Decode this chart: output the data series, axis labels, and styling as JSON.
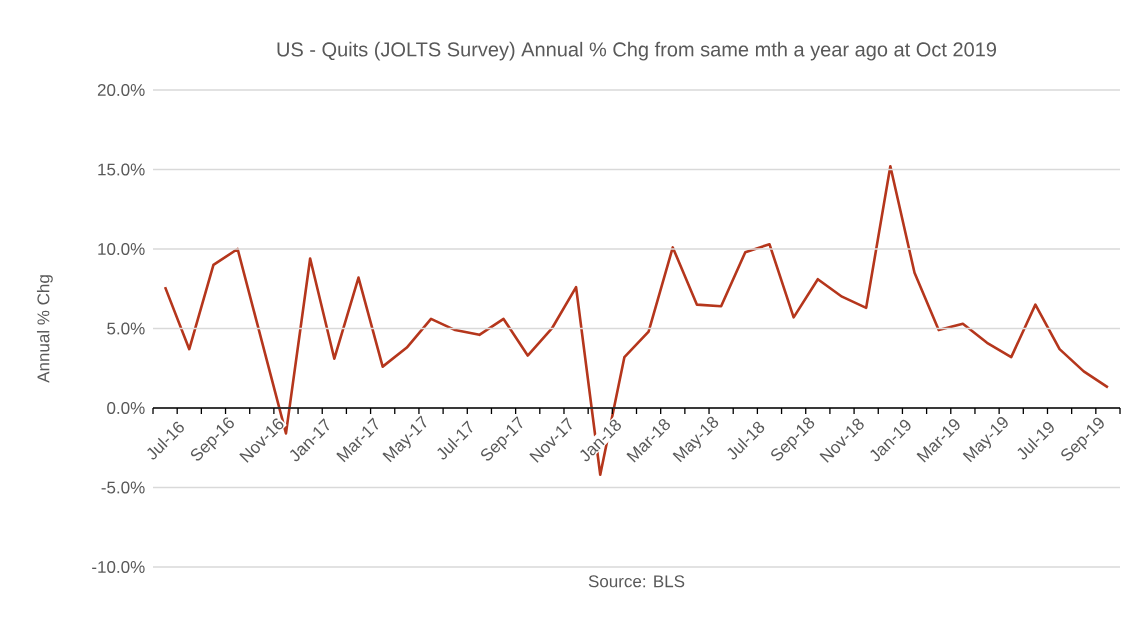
{
  "chart_data": {
    "type": "line",
    "title": "US - Quits (JOLTS Survey) Annual % Chg from same mth a year ago at Oct 2019",
    "ylabel": "Annual % Chg",
    "annotations": [
      "Source: BLS"
    ],
    "categories": [
      "Jul-16",
      null,
      "Sep-16",
      null,
      "Nov-16",
      null,
      "Jan-17",
      null,
      "Mar-17",
      null,
      "May-17",
      null,
      "Jul-17",
      null,
      "Sep-17",
      null,
      "Nov-17",
      null,
      "Jan-18",
      null,
      "Mar-18",
      null,
      "May-18",
      null,
      "Jul-18",
      null,
      "Sep-18",
      null,
      "Nov-18",
      null,
      "Jan-19",
      null,
      "Mar-19",
      null,
      "May-19",
      null,
      "Jul-19",
      null,
      "Sep-19",
      null
    ],
    "series": [
      {
        "color": "#b5361c",
        "values": [
          7.6,
          3.7,
          9.0,
          10.0,
          4.2,
          -1.6,
          9.4,
          3.1,
          8.2,
          2.6,
          3.8,
          5.6,
          4.9,
          4.6,
          5.6,
          3.3,
          5.0,
          7.6,
          -4.2,
          3.2,
          4.8,
          10.1,
          6.5,
          6.4,
          9.8,
          10.3,
          5.7,
          8.1,
          7.0,
          6.3,
          15.2,
          8.5,
          4.9,
          5.3,
          4.1,
          3.2,
          6.5,
          3.7,
          2.3,
          1.3
        ]
      }
    ],
    "ylim": [
      -10,
      20
    ],
    "yticks": [
      {
        "value": -10,
        "label": "-10.0%"
      },
      {
        "value": -5,
        "label": "-5.0%"
      },
      {
        "value": 0,
        "label": "0.0%"
      },
      {
        "value": 5,
        "label": "5.0%"
      },
      {
        "value": 10,
        "label": "10.0%"
      },
      {
        "value": 15,
        "label": "15.0%"
      },
      {
        "value": 20,
        "label": "20.0%"
      }
    ],
    "grid": "y",
    "legend": false,
    "marker": "none",
    "line_style": "solid"
  }
}
